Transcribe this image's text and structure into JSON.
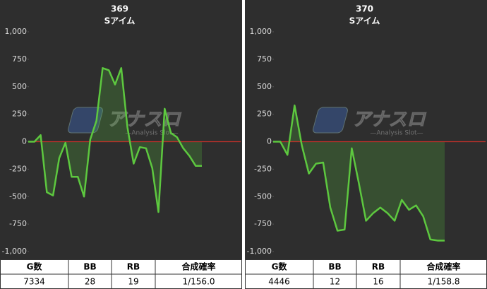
{
  "chart_data": [
    {
      "type": "line",
      "title": "369",
      "subtitle": "Sアイム",
      "color": "#5dc83f",
      "zero_line_color": "#c0302a",
      "values": [
        0,
        0,
        60,
        -460,
        -490,
        -150,
        -10,
        -320,
        -320,
        -500,
        20,
        190,
        670,
        650,
        520,
        670,
        130,
        -200,
        -50,
        -60,
        -240,
        -640,
        300,
        80,
        40,
        -60,
        -130,
        -220,
        -220
      ],
      "ylim": [
        -1000,
        1000
      ],
      "yticks": [
        {
          "value": -1000,
          "label": "-1,000"
        },
        -750,
        -500,
        -250,
        0,
        250,
        500,
        750,
        {
          "value": 1000,
          "label": "1,000"
        }
      ]
    },
    {
      "type": "line",
      "title": "370",
      "subtitle": "Sアイム",
      "color": "#5dc83f",
      "zero_line_color": "#c0302a",
      "values": [
        0,
        0,
        -120,
        330,
        -30,
        -290,
        -200,
        -190,
        -600,
        -810,
        -800,
        -60,
        -380,
        -720,
        -650,
        -600,
        -650,
        -720,
        -530,
        -620,
        -580,
        -680,
        -890,
        -900,
        -900
      ],
      "ylim": [
        -1000,
        1000
      ],
      "yticks": [
        {
          "value": -1000,
          "label": "-1,000"
        },
        -750,
        -500,
        -250,
        0,
        250,
        500,
        750,
        {
          "value": 1000,
          "label": "1,000"
        }
      ]
    }
  ],
  "tables": [
    {
      "header": [
        "G数",
        "BB",
        "RB",
        "合成確率"
      ],
      "row": [
        "7334",
        "28",
        "19",
        "1/156.0"
      ]
    },
    {
      "header": [
        "G数",
        "BB",
        "RB",
        "合成確率"
      ],
      "row": [
        "4446",
        "12",
        "16",
        "1/158.8"
      ]
    }
  ],
  "watermark": {
    "brand": "アナスロ",
    "tagline": "—Analysis Slot—"
  }
}
